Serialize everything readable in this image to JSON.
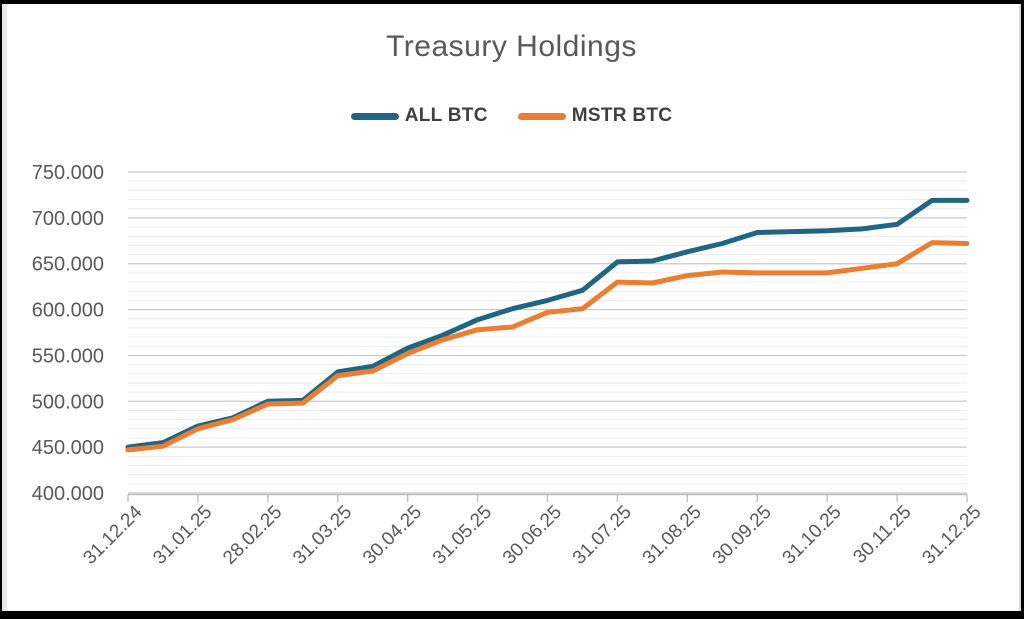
{
  "chart_data": {
    "type": "line",
    "title": "Treasury Holdings",
    "xlabel": "",
    "ylabel": "",
    "ylim": [
      400000,
      750000
    ],
    "y_ticks": [
      400000,
      450000,
      500000,
      550000,
      600000,
      650000,
      700000,
      750000
    ],
    "y_tick_labels": [
      "400.000",
      "450.000",
      "500.000",
      "550.000",
      "600.000",
      "650.000",
      "700.000",
      "750.000"
    ],
    "minor_grid_step": 10000,
    "grid": "on",
    "legend_position": "top",
    "x_tick_labels": [
      "31.12.24",
      "31.01.25",
      "28.02.25",
      "31.03.25",
      "30.04.25",
      "31.05.25",
      "30.06.25",
      "31.07.25",
      "31.08.25",
      "30.09.25",
      "31.10.25",
      "30.11.25",
      "31.12.25"
    ],
    "x_months": [
      0,
      0.5,
      1,
      1.5,
      2,
      2.5,
      3,
      3.5,
      4,
      4.5,
      5,
      5.5,
      6,
      6.5,
      7,
      7.5,
      8,
      8.5,
      9,
      9.5,
      10,
      10.5,
      11,
      11.5,
      12
    ],
    "series": [
      {
        "name": "ALL BTC",
        "color": "#1F6584",
        "values": [
          450000,
          455000,
          473000,
          482000,
          500000,
          501000,
          532000,
          538000,
          558000,
          572000,
          589000,
          601000,
          610000,
          621000,
          652000,
          653000,
          663000,
          672000,
          684000,
          685000,
          686000,
          688000,
          693000,
          719000,
          719000
        ]
      },
      {
        "name": "MSTR BTC",
        "color": "#ED7D31",
        "values": [
          447000,
          451000,
          470000,
          480000,
          497000,
          498000,
          528000,
          533000,
          552000,
          567000,
          578000,
          581000,
          597000,
          601000,
          630000,
          629000,
          637000,
          641000,
          640000,
          640000,
          640000,
          645000,
          650000,
          673000,
          672000
        ]
      }
    ],
    "colors": {
      "title_text": "#595959",
      "axis_text": "#595959",
      "legend_text": "#404040",
      "major_grid": "#c9c9c9",
      "minor_grid": "#ececec",
      "axis_line": "#bfbfbf",
      "background": "#ffffff",
      "frame": "#000000"
    }
  }
}
